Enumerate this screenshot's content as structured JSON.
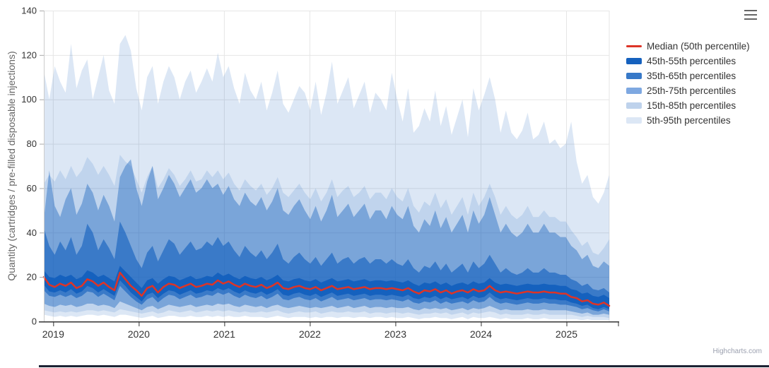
{
  "credits": {
    "label": "Highcharts.com"
  },
  "chart_data": {
    "type": "area",
    "subtype": "percentile-fan-bands",
    "title": "",
    "xlabel": "",
    "ylabel": "Quantity (cartridges / pre-filled disposable injections)",
    "x_domain": [
      2018.89,
      2025.5
    ],
    "x_ticks": [
      2019,
      2020,
      2021,
      2022,
      2023,
      2024,
      2025
    ],
    "ylim": [
      0,
      140
    ],
    "y_ticks": [
      0,
      20,
      40,
      60,
      80,
      100,
      120,
      140
    ],
    "grid": true,
    "grid_color": "#e6e6e6",
    "band_base_color": "#1561be",
    "axis_style": {
      "x_line_color": "#333333",
      "x_tick_color": "#333333",
      "y_line_color": "#cccccc",
      "y_tick_color": "#aaaaaa"
    },
    "legend_position": "right",
    "series": [
      {
        "id": "median",
        "name": "Median (50th percentile)",
        "type": "line",
        "color": "#dd3427",
        "values": [
          20,
          16.5,
          15.5,
          17,
          16,
          17.5,
          15,
          16,
          19,
          18,
          16,
          17.5,
          15.5,
          14,
          22,
          19,
          16,
          14,
          11.5,
          15,
          16,
          13,
          15.5,
          17,
          16.5,
          15,
          16,
          17,
          15.5,
          16,
          17,
          16.5,
          18.5,
          17,
          18,
          16.5,
          15.5,
          17,
          16,
          15.5,
          16.5,
          15,
          16,
          17.5,
          15,
          14.5,
          15.5,
          16,
          15,
          14.5,
          15.5,
          14,
          15,
          16,
          14.5,
          15,
          15.5,
          14.5,
          15,
          15.5,
          14.5,
          15,
          15,
          14.5,
          15,
          14.5,
          14,
          15,
          13.5,
          12.5,
          14,
          13.5,
          14.5,
          13,
          14,
          12.5,
          13.5,
          14,
          13,
          14.5,
          13.5,
          14,
          16,
          14,
          13,
          13.5,
          13,
          12.5,
          13,
          13.5,
          13,
          13,
          13.5,
          13,
          13,
          12.5,
          12.5,
          11,
          10.5,
          9,
          9.5,
          8,
          7.5,
          8.5,
          7
        ]
      },
      {
        "id": "p45-55",
        "name": "45th-55th percentiles",
        "type": "arearange",
        "color": "#1561be",
        "layer_opacity": 1,
        "low": [
          16.5,
          13.5,
          13,
          14,
          13,
          14.5,
          12.5,
          13.5,
          16,
          15,
          13,
          14.5,
          13,
          11.5,
          18.5,
          16,
          13,
          11,
          9,
          12,
          13,
          10.5,
          12.5,
          14,
          13.5,
          12,
          13,
          14,
          12.5,
          13,
          14,
          13.5,
          15,
          14,
          15,
          13.5,
          12.5,
          14,
          13,
          12.5,
          13.5,
          12,
          13,
          14.5,
          12,
          11.5,
          12.5,
          13,
          12,
          11.5,
          12.5,
          11,
          12,
          13,
          11.5,
          12,
          12.5,
          11.5,
          12,
          12.5,
          11.5,
          12,
          12,
          11.5,
          12,
          11.5,
          11,
          12,
          10.5,
          10,
          11,
          10.5,
          11.5,
          10,
          11,
          10,
          10.5,
          11,
          10,
          11.5,
          10.5,
          11,
          13,
          11,
          10,
          10.5,
          10,
          9.5,
          10,
          10.5,
          10,
          10,
          10.5,
          10,
          10,
          9.5,
          9.5,
          8.5,
          8,
          7,
          7.5,
          6,
          5.5,
          6.5,
          5.5
        ],
        "high": [
          23,
          20,
          19.5,
          21,
          20,
          21,
          19,
          20,
          23,
          22,
          20,
          21,
          19.5,
          18,
          25,
          22.5,
          20,
          17.5,
          15,
          18.5,
          19.5,
          17,
          19,
          20.5,
          20,
          18.5,
          19.5,
          20.5,
          19,
          19.5,
          20.5,
          20,
          22,
          20.5,
          21.5,
          20,
          19,
          20.5,
          19.5,
          19,
          20,
          18.5,
          19.5,
          21,
          18.5,
          18,
          19,
          19.5,
          18.5,
          18,
          19,
          17.5,
          18.5,
          19.5,
          18,
          18.5,
          19,
          18,
          18.5,
          19,
          18,
          18.5,
          18.5,
          18,
          18.5,
          18,
          17.5,
          18.5,
          17,
          16,
          17.5,
          17,
          18,
          16.5,
          17.5,
          16,
          17,
          17.5,
          16.5,
          18,
          17,
          17.5,
          19.5,
          17.5,
          16.5,
          17,
          16.5,
          16,
          16.5,
          17,
          16.5,
          16.5,
          17,
          16.5,
          16.5,
          16,
          16,
          14.5,
          14,
          12.5,
          13,
          11.5,
          11,
          12,
          10.5
        ]
      },
      {
        "id": "p35-65",
        "name": "35th-65th percentiles",
        "type": "arearange",
        "color": "#3879c8",
        "layer_opacity": 0.63,
        "low": [
          14,
          11.5,
          11,
          12,
          11,
          12,
          10.5,
          11.5,
          13.5,
          13,
          11,
          12.5,
          11,
          9.5,
          16,
          13.5,
          11,
          9,
          7.5,
          10,
          11,
          8.5,
          10.5,
          12,
          11.5,
          10,
          11,
          12,
          10.5,
          11,
          12,
          11.5,
          13,
          12,
          13,
          11.5,
          10.5,
          12,
          11,
          10.5,
          11.5,
          10,
          11,
          12.5,
          10,
          9.5,
          10.5,
          11,
          10,
          9.5,
          10.5,
          9,
          10,
          11,
          9.5,
          10,
          10.5,
          9.5,
          10,
          10.5,
          9.5,
          10,
          10,
          9.5,
          10,
          9.5,
          9,
          10,
          8.5,
          8,
          9,
          8.5,
          9.5,
          8,
          9,
          8,
          8.5,
          9,
          8,
          9.5,
          8.5,
          9,
          11,
          9,
          8,
          8.5,
          8,
          7.5,
          8,
          8.5,
          8,
          8,
          8.5,
          8,
          8,
          7.5,
          7.5,
          7,
          6.5,
          5.5,
          6,
          5,
          4.5,
          5.5,
          4.5
        ],
        "high": [
          42,
          34,
          30,
          36,
          32,
          38,
          30,
          34,
          44,
          40,
          32,
          37,
          33,
          28,
          45,
          40,
          34,
          28,
          24,
          31,
          34,
          27,
          32,
          37,
          35,
          30,
          33,
          36,
          32,
          33,
          36,
          34,
          38,
          34,
          36,
          32,
          29,
          34,
          31,
          29,
          32,
          28,
          31,
          35,
          28,
          26,
          29,
          31,
          28,
          26,
          29,
          25,
          28,
          31,
          26,
          28,
          29,
          26,
          28,
          29,
          26,
          28,
          28,
          26,
          28,
          26,
          25,
          28,
          24,
          22,
          25,
          24,
          27,
          23,
          26,
          22,
          24,
          26,
          22,
          27,
          24,
          26,
          30,
          26,
          22,
          24,
          22,
          21,
          22,
          24,
          22,
          22,
          24,
          22,
          22,
          21,
          21,
          19,
          18,
          16,
          17,
          14.5,
          14,
          15,
          13
        ]
      },
      {
        "id": "p25-75",
        "name": "25th-75th percentiles",
        "type": "arearange",
        "color": "#7ea8e1",
        "layer_opacity": 0.41,
        "low": [
          8,
          7,
          6.5,
          7.5,
          7,
          7.5,
          6.5,
          7,
          8,
          8,
          7,
          7.5,
          7,
          6,
          9,
          8,
          7,
          6,
          5,
          6.5,
          7,
          5.5,
          6.5,
          7.5,
          7,
          6.5,
          7,
          7.5,
          6.5,
          7,
          7.5,
          7,
          8,
          7.5,
          8,
          7,
          6.5,
          7.5,
          7,
          6.5,
          7,
          6,
          7,
          7.5,
          6.5,
          6,
          6.5,
          7,
          6.5,
          6,
          6.5,
          6,
          6.5,
          7,
          6,
          6.5,
          7,
          6,
          6.5,
          7,
          6,
          6.5,
          6.5,
          6,
          6.5,
          6,
          6,
          6.5,
          5.5,
          5,
          6,
          5.5,
          6,
          5.5,
          6,
          5,
          5.5,
          6,
          5,
          6,
          5.5,
          6,
          7,
          6,
          5,
          5.5,
          5,
          5,
          5,
          5.5,
          5,
          5,
          5.5,
          5,
          5,
          5,
          5,
          4.5,
          4,
          3.5,
          4,
          3,
          3,
          3.5,
          3
        ],
        "high": [
          46,
          68,
          52,
          47,
          55,
          60,
          48,
          53,
          62,
          58,
          50,
          57,
          52,
          45,
          65,
          70,
          73,
          60,
          52,
          63,
          70,
          55,
          60,
          66,
          62,
          56,
          60,
          64,
          58,
          60,
          64,
          60,
          62,
          57,
          61,
          55,
          52,
          58,
          54,
          52,
          56,
          50,
          54,
          60,
          50,
          48,
          52,
          55,
          50,
          46,
          52,
          45,
          50,
          57,
          47,
          50,
          53,
          47,
          50,
          53,
          46,
          50,
          50,
          46,
          52,
          48,
          46,
          52,
          43,
          40,
          46,
          43,
          50,
          42,
          47,
          40,
          44,
          48,
          40,
          50,
          44,
          48,
          56,
          48,
          40,
          44,
          40,
          38,
          40,
          44,
          40,
          40,
          44,
          40,
          40,
          38,
          38,
          34,
          32,
          28,
          30,
          25,
          24,
          27,
          25
        ]
      },
      {
        "id": "p15-85",
        "name": "15th-85th percentiles",
        "type": "arearange",
        "color": "#bed2ec",
        "layer_opacity": 0.14,
        "low": [
          5,
          4.5,
          4,
          4.5,
          4,
          4.5,
          4,
          4.5,
          5,
          5,
          4.5,
          5,
          4.5,
          4,
          5.5,
          5,
          4.5,
          4,
          3.5,
          4,
          4.5,
          3.5,
          4,
          5,
          4.5,
          4,
          4.5,
          5,
          4,
          4.5,
          5,
          4.5,
          5,
          4.5,
          5,
          4.5,
          4,
          4.5,
          4,
          4,
          4.5,
          4,
          4.5,
          5,
          4,
          3.5,
          4,
          4.5,
          4,
          4,
          4.5,
          3.5,
          4,
          4.5,
          4,
          4,
          4.5,
          4,
          4,
          4.5,
          3.5,
          4,
          4,
          3.5,
          4,
          4,
          3.5,
          4,
          3.5,
          3,
          3.5,
          3.5,
          4,
          3.5,
          4,
          3,
          3.5,
          4,
          3,
          4,
          3.5,
          4,
          4.5,
          4,
          3,
          3.5,
          3,
          3,
          3,
          3.5,
          3,
          3,
          3.5,
          3,
          3,
          3,
          3,
          3,
          2.5,
          2,
          2.5,
          2,
          2,
          2,
          1.5
        ],
        "high": [
          62,
          66,
          63,
          68,
          64,
          70,
          65,
          68,
          74,
          71,
          66,
          70,
          66,
          61,
          75,
          72,
          70,
          64,
          58,
          65,
          70,
          60,
          64,
          69,
          66,
          61,
          64,
          68,
          63,
          64,
          68,
          65,
          68,
          64,
          67,
          62,
          59,
          64,
          61,
          59,
          62,
          57,
          60,
          65,
          58,
          56,
          59,
          62,
          58,
          55,
          60,
          54,
          58,
          64,
          56,
          59,
          61,
          56,
          58,
          61,
          55,
          58,
          58,
          55,
          60,
          56,
          54,
          60,
          52,
          49,
          54,
          52,
          58,
          51,
          55,
          48,
          52,
          56,
          48,
          58,
          52,
          56,
          62,
          56,
          48,
          52,
          48,
          46,
          48,
          52,
          47,
          47,
          50,
          47,
          47,
          45,
          45,
          41,
          38,
          34,
          36,
          31,
          30,
          33,
          37
        ]
      },
      {
        "id": "p5-95",
        "name": "5th-95th percentiles",
        "type": "arearange",
        "color": "#dce7f5",
        "layer_opacity": 0.15,
        "low": [
          3,
          2.5,
          2,
          2.5,
          2,
          2.5,
          2,
          2.5,
          3,
          3,
          2.5,
          3,
          2.5,
          2,
          3,
          3,
          2.5,
          2,
          1.5,
          2,
          2.5,
          1.5,
          2,
          2.5,
          2.5,
          2,
          2,
          2.5,
          2,
          2,
          2.5,
          2,
          2.5,
          2,
          2.5,
          2,
          2,
          2.5,
          2,
          2,
          2,
          1.5,
          2,
          2.5,
          2,
          1.5,
          2,
          2,
          2,
          1.5,
          2,
          1.5,
          2,
          2,
          1.5,
          2,
          2,
          1.5,
          2,
          2,
          1.5,
          2,
          2,
          1.5,
          2,
          1.5,
          1.5,
          2,
          1.5,
          1,
          1.5,
          1.5,
          2,
          1.5,
          1.5,
          1,
          1.5,
          2,
          1,
          2,
          1.5,
          1.5,
          2,
          1.5,
          1,
          1.5,
          1,
          1,
          1,
          1.5,
          1,
          1,
          1.5,
          1,
          1,
          1,
          1,
          1,
          1,
          0.5,
          1,
          0.5,
          0.5,
          0.5,
          0.5
        ],
        "high": [
          113,
          100,
          115,
          108,
          103,
          125,
          105,
          113,
          118,
          100,
          110,
          120,
          104,
          98,
          125,
          129,
          122,
          105,
          95,
          110,
          115,
          98,
          108,
          115,
          110,
          100,
          108,
          113,
          103,
          108,
          114,
          108,
          121,
          110,
          115,
          105,
          98,
          112,
          104,
          100,
          108,
          95,
          103,
          113,
          98,
          94,
          100,
          106,
          103,
          95,
          108,
          93,
          103,
          117,
          98,
          104,
          110,
          96,
          102,
          108,
          94,
          103,
          100,
          95,
          112,
          100,
          90,
          105,
          85,
          88,
          96,
          90,
          104,
          88,
          97,
          84,
          92,
          100,
          83,
          105,
          95,
          102,
          110,
          100,
          85,
          95,
          85,
          82,
          86,
          94,
          82,
          84,
          90,
          80,
          82,
          78,
          80,
          90,
          72,
          62,
          66,
          56,
          53,
          58,
          66
        ]
      }
    ]
  }
}
